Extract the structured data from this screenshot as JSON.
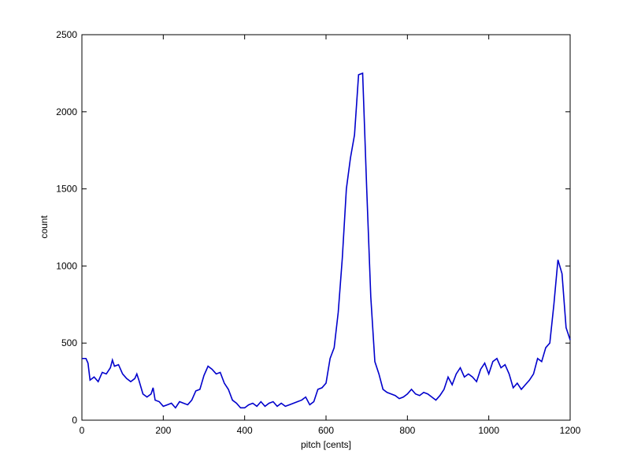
{
  "chart_data": {
    "type": "line",
    "x_label": "pitch [cents]",
    "y_label": "count",
    "x": [
      0,
      10,
      15,
      20,
      30,
      40,
      50,
      60,
      70,
      75,
      80,
      90,
      100,
      110,
      120,
      130,
      135,
      140,
      150,
      160,
      170,
      175,
      180,
      190,
      200,
      210,
      220,
      230,
      240,
      250,
      260,
      270,
      280,
      290,
      300,
      310,
      320,
      330,
      340,
      350,
      360,
      370,
      380,
      390,
      400,
      410,
      420,
      430,
      440,
      450,
      460,
      470,
      480,
      490,
      500,
      510,
      520,
      530,
      540,
      550,
      560,
      570,
      580,
      590,
      600,
      610,
      620,
      630,
      640,
      650,
      660,
      670,
      680,
      690,
      700,
      710,
      720,
      730,
      740,
      750,
      760,
      770,
      780,
      790,
      800,
      810,
      820,
      830,
      840,
      850,
      860,
      870,
      880,
      890,
      900,
      910,
      920,
      930,
      940,
      950,
      960,
      970,
      980,
      990,
      1000,
      1010,
      1020,
      1030,
      1040,
      1050,
      1060,
      1070,
      1080,
      1090,
      1100,
      1110,
      1120,
      1130,
      1140,
      1150,
      1160,
      1170,
      1180,
      1190,
      1200
    ],
    "series": [
      {
        "name": "count",
        "color": "#0000cc",
        "values": [
          400,
          400,
          370,
          260,
          280,
          250,
          310,
          300,
          340,
          390,
          350,
          360,
          300,
          270,
          250,
          270,
          300,
          260,
          170,
          150,
          170,
          210,
          130,
          120,
          90,
          100,
          110,
          80,
          120,
          110,
          100,
          130,
          190,
          200,
          290,
          350,
          330,
          300,
          310,
          240,
          200,
          130,
          110,
          80,
          80,
          100,
          110,
          90,
          120,
          90,
          110,
          120,
          90,
          110,
          90,
          100,
          110,
          120,
          130,
          150,
          100,
          120,
          200,
          210,
          240,
          400,
          470,
          700,
          1050,
          1500,
          1700,
          1850,
          2240,
          2250,
          1500,
          800,
          380,
          300,
          200,
          180,
          170,
          160,
          140,
          150,
          170,
          200,
          170,
          160,
          180,
          170,
          150,
          130,
          160,
          200,
          280,
          230,
          300,
          340,
          280,
          300,
          280,
          250,
          330,
          370,
          300,
          380,
          400,
          340,
          360,
          300,
          210,
          240,
          200,
          230,
          260,
          300,
          400,
          380,
          470,
          500,
          750,
          1040,
          950,
          600,
          520
        ]
      }
    ],
    "xlim": [
      0,
      1200
    ],
    "ylim": [
      0,
      2500
    ],
    "xticks": [
      0,
      200,
      400,
      600,
      800,
      1000,
      1200
    ],
    "yticks": [
      0,
      500,
      1000,
      1500,
      2000,
      2500
    ]
  }
}
